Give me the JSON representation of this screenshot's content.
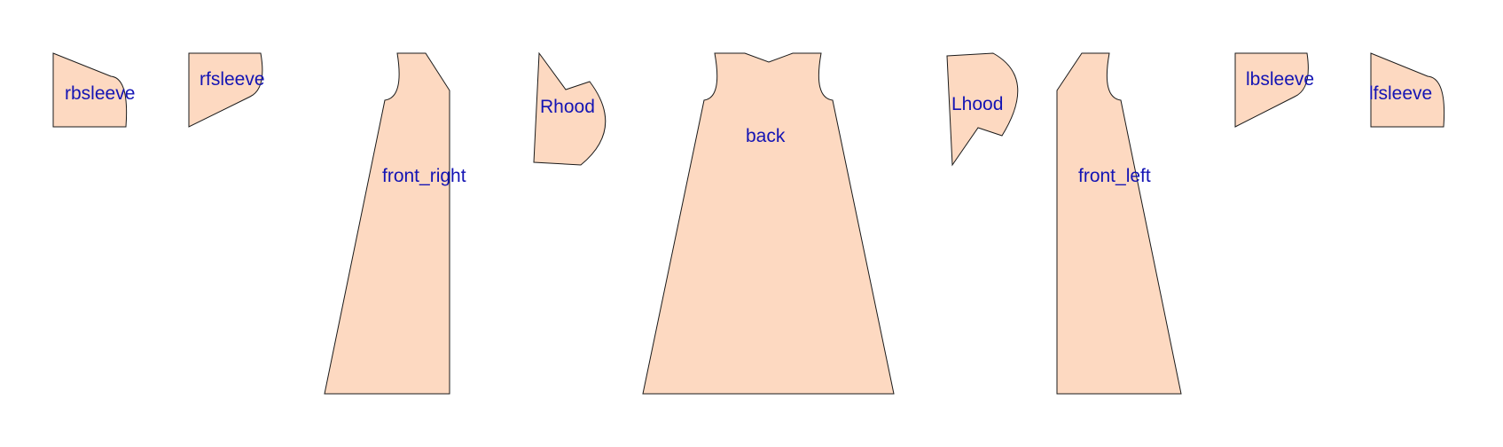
{
  "style": {
    "piece_fill": "#fdd9c1",
    "piece_stroke": "#1a1a1a",
    "label_color": "#1414b4",
    "background": "#ffffff"
  },
  "pieces": [
    {
      "id": "rbsleeve",
      "label": "rbsleeve"
    },
    {
      "id": "rfsleeve",
      "label": "rfsleeve"
    },
    {
      "id": "front_right",
      "label": "front_right"
    },
    {
      "id": "rhood",
      "label": "Rhood"
    },
    {
      "id": "back",
      "label": "back"
    },
    {
      "id": "lhood",
      "label": "Lhood"
    },
    {
      "id": "front_left",
      "label": "front_left"
    },
    {
      "id": "lbsleeve",
      "label": "lbsleeve"
    },
    {
      "id": "lfsleeve",
      "label": "lfsleeve"
    }
  ]
}
